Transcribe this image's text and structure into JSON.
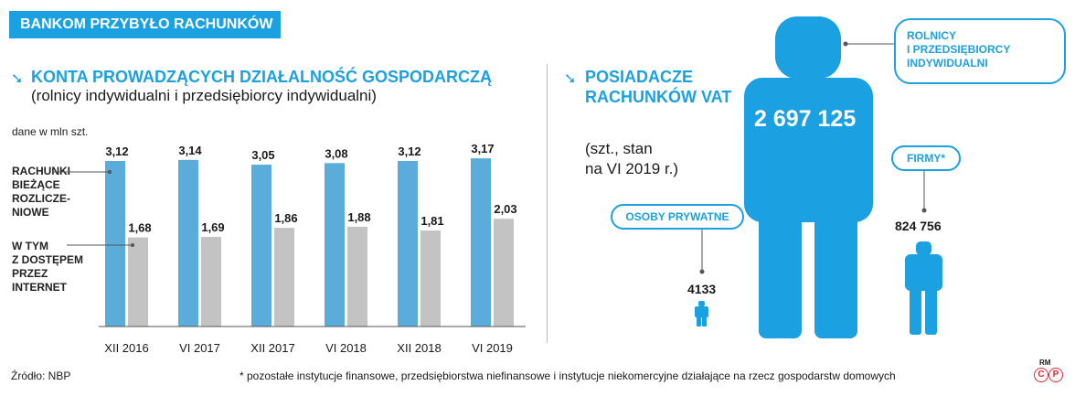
{
  "banner": "BANKOM PRZYBYŁO RACHUNKÓW",
  "left": {
    "title": "KONTA PROWADZĄCYCH DZIAŁALNOŚĆ GOSPODARCZĄ",
    "subtitle": "(rolnicy indywidualni i przedsiębiorcy indywidualni)",
    "unit_note": "dane w mln szt.",
    "legend": {
      "current": [
        "RACHUNKI",
        "BIEŻĄCE",
        "ROZLICZE-",
        "NIOWE"
      ],
      "internet": [
        "W TYM",
        "Z DOSTĘPEM",
        "PRZEZ",
        "INTERNET"
      ]
    }
  },
  "right": {
    "title_line1": "POSIADACZE",
    "title_line2": "RACHUNKÓW VAT",
    "note_line1": "(szt., stan",
    "note_line2": "na VI 2019 r.)",
    "labels": {
      "farmers": [
        "ROLNICY",
        "I PRZEDSIĘBIORCY",
        "INDYWIDUALNI"
      ],
      "firms": "FIRMY*",
      "private": "OSOBY PRYWATNE"
    },
    "values": {
      "farmers": "2 697 125",
      "firms": "824 756",
      "private": "4133"
    }
  },
  "footer": {
    "source": "Źródło: NBP",
    "footnote": "* pozostałe instytucje finansowe, przedsiębiorstwa niefinansowe i instytucje niekomercyjne działające na rzecz gospodarstw domowych",
    "logo_text": "RM"
  },
  "colors": {
    "accent": "#1ba0e1",
    "bar_current": "#5aaddb",
    "bar_internet": "#c3c3c3",
    "logo": "#e3262f"
  },
  "chart_data": [
    {
      "type": "bar",
      "categories": [
        "XII 2016",
        "VI 2017",
        "XII 2017",
        "VI 2018",
        "XII 2018",
        "VI 2019"
      ],
      "series": [
        {
          "name": "RACHUNKI BIEŻĄCE ROZLICZENIOWE",
          "values": [
            3.12,
            3.14,
            3.05,
            3.08,
            3.12,
            3.17
          ],
          "labels": [
            "3,12",
            "3,14",
            "3,05",
            "3,08",
            "3,12",
            "3,17"
          ]
        },
        {
          "name": "W TYM Z DOSTĘPEM PRZEZ INTERNET",
          "values": [
            1.68,
            1.69,
            1.86,
            1.88,
            1.81,
            2.03
          ],
          "labels": [
            "1,68",
            "1,69",
            "1,86",
            "1,88",
            "1,81",
            "2,03"
          ]
        }
      ],
      "ylim": [
        0,
        3.4
      ],
      "grid": false
    },
    {
      "type": "pictogram",
      "categories": [
        "ROLNICY I PRZEDSIĘBIORCY INDYWIDUALNI",
        "FIRMY*",
        "OSOBY PRYWATNE"
      ],
      "values": [
        2697125,
        824756,
        4133
      ]
    }
  ]
}
